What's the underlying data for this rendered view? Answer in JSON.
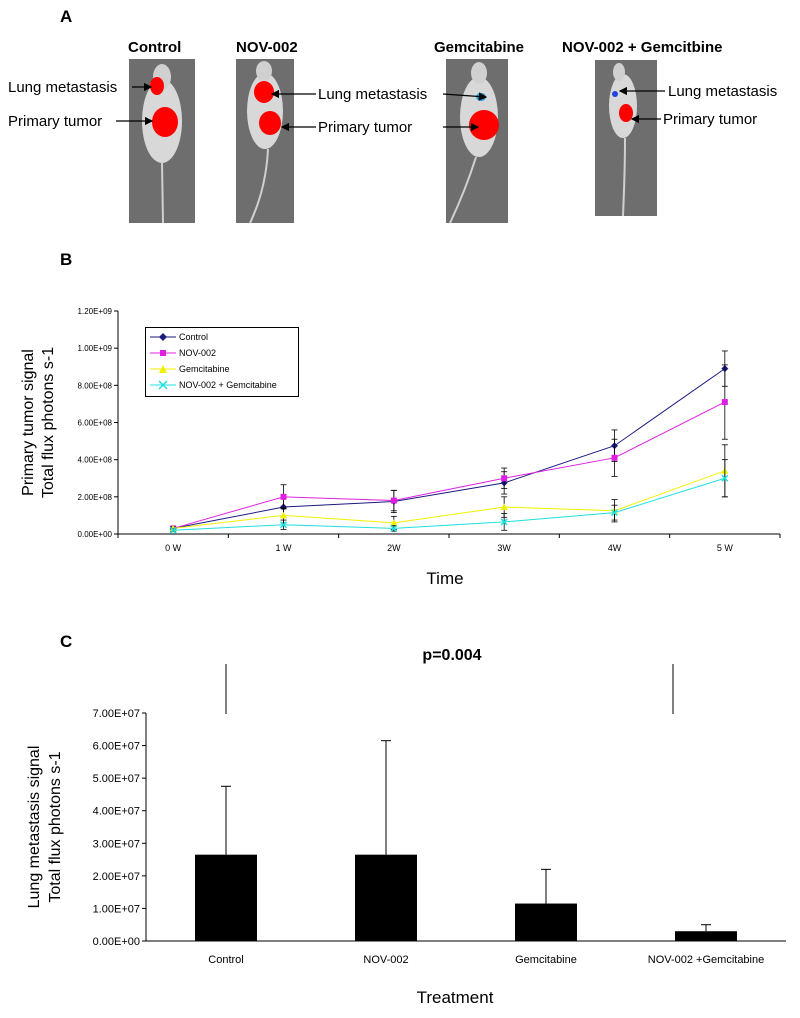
{
  "panels": {
    "a": {
      "label": "A",
      "mice": [
        {
          "title": "Control",
          "annotations": [
            "Lung metastasis",
            "Primary tumor"
          ]
        },
        {
          "title": "NOV-002",
          "annotations": [
            "Lung metastasis",
            "Primary tumor"
          ]
        },
        {
          "title": "Gemcitabine",
          "annotations": [
            "Lung metastasis",
            "Primary tumor"
          ]
        },
        {
          "title": "NOV-002 + Gemcitbine",
          "annotations": [
            "Lung metastasis",
            "Primary tumor"
          ]
        }
      ]
    },
    "b": {
      "label": "B"
    },
    "c": {
      "label": "C"
    }
  },
  "chart_data": [
    {
      "type": "line",
      "title": "",
      "xlabel": "Time",
      "ylabel": [
        "Primary tumor signal",
        "Total flux photons s-1"
      ],
      "categories": [
        "0 W",
        "1 W",
        "2W",
        "3W",
        "4W",
        "5 W"
      ],
      "ylim": [
        0,
        1200000000
      ],
      "yticks": [
        "0.00E+00",
        "2.00E+08",
        "4.00E+08",
        "6.00E+08",
        "8.00E+08",
        "1.00E+09",
        "1.20E+09"
      ],
      "legend": "top-left",
      "series": [
        {
          "name": "Control",
          "color": "#1a1a80",
          "marker": "diamond",
          "values": [
            30000000,
            145000000,
            175000000,
            275000000,
            475000000,
            890000000
          ],
          "errors": [
            8000000,
            55000000,
            60000000,
            60000000,
            85000000,
            95000000
          ]
        },
        {
          "name": "NOV-002",
          "color": "#e020e0",
          "marker": "square",
          "values": [
            30000000,
            200000000,
            180000000,
            300000000,
            410000000,
            710000000
          ],
          "errors": [
            8000000,
            65000000,
            55000000,
            55000000,
            100000000,
            200000000
          ]
        },
        {
          "name": "Gemcitabine",
          "color": "#f0f000",
          "marker": "triangle",
          "values": [
            30000000,
            100000000,
            60000000,
            145000000,
            125000000,
            340000000
          ],
          "errors": [
            8000000,
            40000000,
            35000000,
            55000000,
            60000000,
            140000000
          ]
        },
        {
          "name": "NOV-002 + Gemcitabine",
          "color": "#20e0e0",
          "marker": "x",
          "values": [
            20000000,
            50000000,
            30000000,
            65000000,
            115000000,
            300000000
          ],
          "errors": [
            8000000,
            25000000,
            15000000,
            45000000,
            40000000,
            100000000
          ]
        }
      ]
    },
    {
      "type": "bar",
      "title": "p=0.004",
      "xlabel": "Treatment",
      "ylabel": [
        "Lung metastasis signal",
        "Total flux photons s-1"
      ],
      "categories": [
        "Control",
        "NOV-002",
        "Gemcitabine",
        "NOV-002 +Gemcitabine"
      ],
      "values": [
        26500000,
        26500000,
        11500000,
        3000000
      ],
      "errors": [
        21000000,
        35000000,
        10500000,
        2000000
      ],
      "ylim": [
        0,
        70000000
      ],
      "yticks": [
        "0.00E+00",
        "1.00E+07",
        "2.00E+07",
        "3.00E+07",
        "4.00E+07",
        "5.00E+07",
        "6.00E+07",
        "7.00E+07"
      ],
      "bar_color": "#000000"
    }
  ]
}
